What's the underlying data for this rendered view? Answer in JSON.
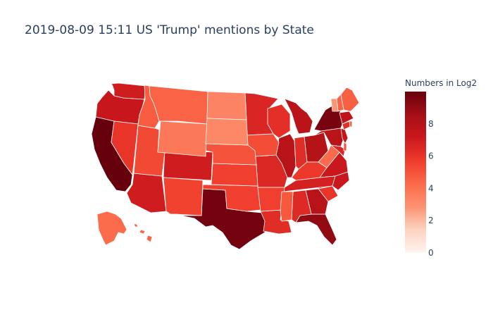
{
  "chart_data": {
    "type": "choropleth",
    "title": "2019-08-09 15:11 US 'Trump' mentions by State",
    "colorbar": {
      "title": "Numbers in Log2",
      "range": [
        0,
        10
      ],
      "ticks": [
        0,
        2,
        4,
        6,
        8
      ],
      "colors": [
        "#fff5f0",
        "#fdd3c1",
        "#fc9272",
        "#fb6a4a",
        "#ef3b2c",
        "#cb181d",
        "#a50f15",
        "#67000d"
      ]
    },
    "states": [
      {
        "code": "CA",
        "value": 10.0
      },
      {
        "code": "TX",
        "value": 9.7
      },
      {
        "code": "NY",
        "value": 9.6
      },
      {
        "code": "FL",
        "value": 9.0
      },
      {
        "code": "OH",
        "value": 8.0
      },
      {
        "code": "GA",
        "value": 7.9
      },
      {
        "code": "IL",
        "value": 7.9
      },
      {
        "code": "MI",
        "value": 7.8
      },
      {
        "code": "PA",
        "value": 7.8
      },
      {
        "code": "MA",
        "value": 7.6
      },
      {
        "code": "NJ",
        "value": 7.5
      },
      {
        "code": "OR",
        "value": 7.3
      },
      {
        "code": "VA",
        "value": 7.2
      },
      {
        "code": "NC",
        "value": 7.2
      },
      {
        "code": "WA",
        "value": 7.0
      },
      {
        "code": "AZ",
        "value": 7.0
      },
      {
        "code": "CO",
        "value": 7.0
      },
      {
        "code": "TN",
        "value": 6.8
      },
      {
        "code": "MN",
        "value": 6.6
      },
      {
        "code": "MO",
        "value": 6.5
      },
      {
        "code": "AL",
        "value": 6.4
      },
      {
        "code": "IN",
        "value": 6.3
      },
      {
        "code": "MD",
        "value": 6.6
      },
      {
        "code": "WI",
        "value": 6.2
      },
      {
        "code": "SC",
        "value": 6.0
      },
      {
        "code": "LA",
        "value": 6.3
      },
      {
        "code": "KY",
        "value": 5.8
      },
      {
        "code": "NV",
        "value": 6.0
      },
      {
        "code": "CT",
        "value": 6.2
      },
      {
        "code": "OK",
        "value": 5.6
      },
      {
        "code": "KS",
        "value": 5.6
      },
      {
        "code": "AR",
        "value": 5.6
      },
      {
        "code": "NM",
        "value": 5.5
      },
      {
        "code": "UT",
        "value": 5.3
      },
      {
        "code": "IA",
        "value": 5.2
      },
      {
        "code": "NE",
        "value": 5.0
      },
      {
        "code": "MS",
        "value": 4.8
      },
      {
        "code": "ID",
        "value": 4.7
      },
      {
        "code": "MT",
        "value": 4.5
      },
      {
        "code": "ME",
        "value": 4.6
      },
      {
        "code": "NH",
        "value": 4.5
      },
      {
        "code": "WV",
        "value": 4.3
      },
      {
        "code": "DE",
        "value": 5.0
      },
      {
        "code": "RI",
        "value": 4.5
      },
      {
        "code": "AK",
        "value": 4.2
      },
      {
        "code": "HI",
        "value": 4.5
      },
      {
        "code": "WY",
        "value": 3.8
      },
      {
        "code": "ND",
        "value": 3.4
      },
      {
        "code": "SD",
        "value": 3.2
      },
      {
        "code": "VT",
        "value": 2.8
      }
    ]
  }
}
